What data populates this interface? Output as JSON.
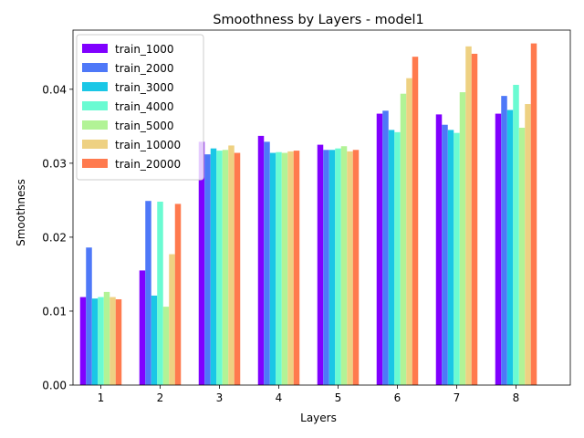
{
  "chart_data": {
    "type": "bar",
    "title": "Smoothness by Layers - model1",
    "xlabel": "Layers",
    "ylabel": "Smoothness",
    "categories": [
      "1",
      "2",
      "3",
      "4",
      "5",
      "6",
      "7",
      "8"
    ],
    "ylim": [
      0,
      0.048
    ],
    "yticks": [
      "0.00",
      "0.01",
      "0.02",
      "0.03",
      "0.04"
    ],
    "grid": false,
    "legend_position": "top-left",
    "series": [
      {
        "name": "train_1000",
        "color": "#8000ff",
        "values": [
          0.0119,
          0.0155,
          0.0329,
          0.0337,
          0.0325,
          0.0367,
          0.0366,
          0.0367
        ]
      },
      {
        "name": "train_2000",
        "color": "#4e78f8",
        "values": [
          0.0186,
          0.0249,
          0.0312,
          0.0329,
          0.0318,
          0.0371,
          0.0352,
          0.0391
        ]
      },
      {
        "name": "train_3000",
        "color": "#1ac7e6",
        "values": [
          0.0117,
          0.0121,
          0.032,
          0.0314,
          0.0318,
          0.0345,
          0.0345,
          0.0372
        ]
      },
      {
        "name": "train_4000",
        "color": "#6afbd2",
        "values": [
          0.0119,
          0.0248,
          0.0317,
          0.0315,
          0.032,
          0.0342,
          0.0341,
          0.0406
        ]
      },
      {
        "name": "train_5000",
        "color": "#b2f396",
        "values": [
          0.0126,
          0.0106,
          0.0318,
          0.0314,
          0.0323,
          0.0394,
          0.0396,
          0.0348
        ]
      },
      {
        "name": "train_10000",
        "color": "#eed182",
        "values": [
          0.0119,
          0.0177,
          0.0324,
          0.0316,
          0.0316,
          0.0415,
          0.0458,
          0.038
        ]
      },
      {
        "name": "train_20000",
        "color": "#ff7a4e",
        "values": [
          0.0116,
          0.0245,
          0.0314,
          0.0317,
          0.0318,
          0.0444,
          0.0448,
          0.0462
        ]
      }
    ]
  }
}
